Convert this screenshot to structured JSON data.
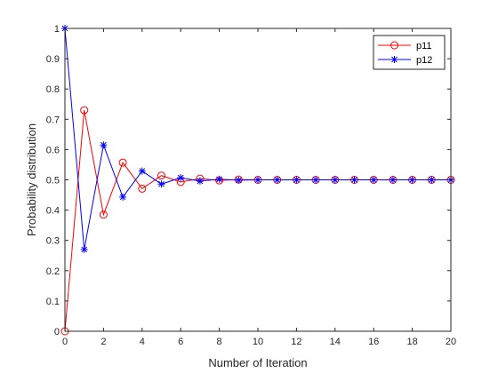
{
  "chart_data": {
    "type": "line",
    "xlabel": "Number of Iteration",
    "ylabel": "Probability distribution",
    "xlim": [
      0,
      20
    ],
    "ylim": [
      0,
      1
    ],
    "x_ticks": [
      0,
      2,
      4,
      6,
      8,
      10,
      12,
      14,
      16,
      18,
      20
    ],
    "y_ticks": [
      0,
      0.1,
      0.2,
      0.3,
      0.4,
      0.5,
      0.6,
      0.7,
      0.8,
      0.9,
      1
    ],
    "y_tick_labels": [
      "0",
      "0.1",
      "0.2",
      "0.3",
      "0.4",
      "0.5",
      "0.6",
      "0.7",
      "0.8",
      "0.9",
      "1"
    ],
    "grid": false,
    "legend_position": "top-right",
    "x": [
      0,
      1,
      2,
      3,
      4,
      5,
      6,
      7,
      8,
      9,
      10,
      11,
      12,
      13,
      14,
      15,
      16,
      17,
      18,
      19,
      20
    ],
    "series": [
      {
        "name": "p11",
        "color": "#ff0000",
        "marker": "circle",
        "values": [
          0,
          0.73,
          0.385,
          0.557,
          0.471,
          0.514,
          0.493,
          0.504,
          0.498,
          0.501,
          0.5,
          0.5,
          0.5,
          0.5,
          0.5,
          0.5,
          0.5,
          0.5,
          0.5,
          0.5,
          0.5
        ]
      },
      {
        "name": "p12",
        "color": "#0000ff",
        "marker": "asterisk",
        "values": [
          1,
          0.27,
          0.615,
          0.443,
          0.529,
          0.486,
          0.507,
          0.496,
          0.502,
          0.499,
          0.5,
          0.5,
          0.5,
          0.5,
          0.5,
          0.5,
          0.5,
          0.5,
          0.5,
          0.5,
          0.5
        ]
      }
    ]
  }
}
